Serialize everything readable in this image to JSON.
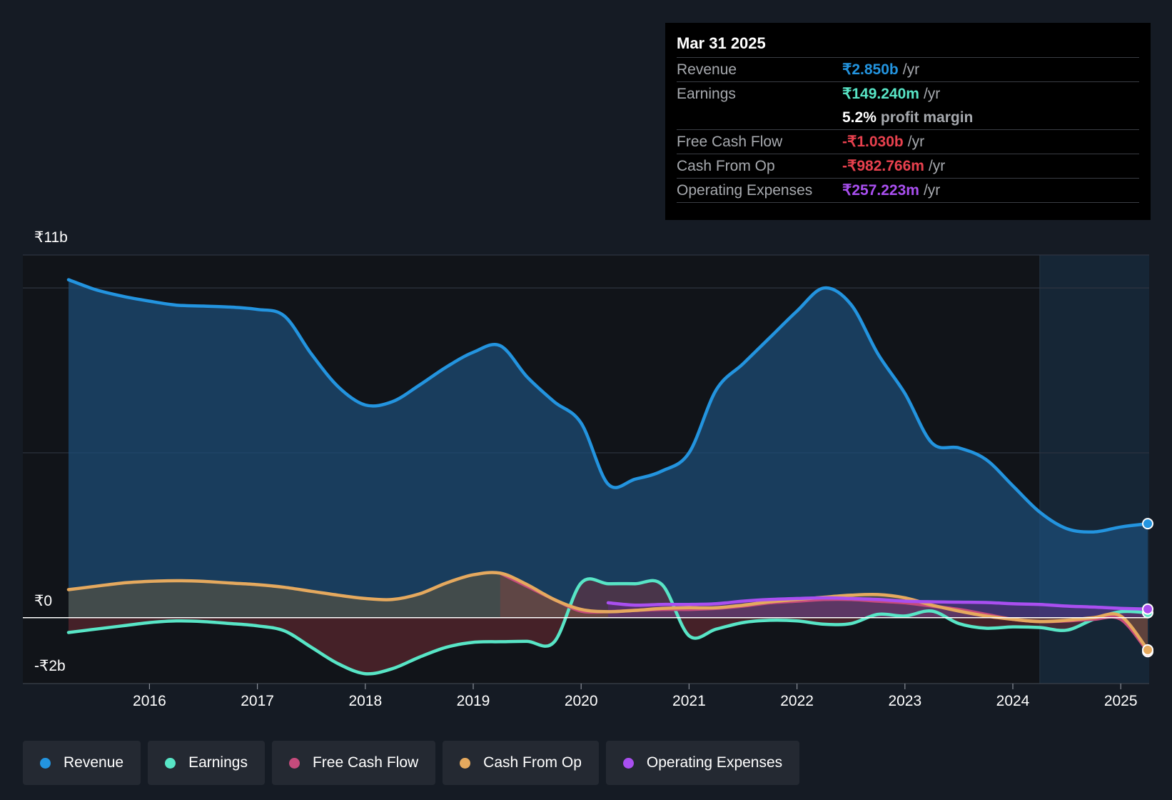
{
  "tooltip": {
    "date": "Mar 31 2025",
    "rows": [
      {
        "label": "Revenue",
        "value": "₹2.850b",
        "unit": "/yr",
        "color": "#2394df"
      },
      {
        "label": "Earnings",
        "value": "₹149.240m",
        "unit": "/yr",
        "color": "#58e5c6"
      },
      {
        "label": "",
        "value": "5.2%",
        "unit": "profit margin",
        "color": "#ffffff"
      },
      {
        "label": "Free Cash Flow",
        "value": "-₹1.030b",
        "unit": "/yr",
        "color": "#e8414e"
      },
      {
        "label": "Cash From Op",
        "value": "-₹982.766m",
        "unit": "/yr",
        "color": "#e8414e"
      },
      {
        "label": "Operating Expenses",
        "value": "₹257.223m",
        "unit": "/yr",
        "color": "#a94ff0"
      }
    ]
  },
  "legend": [
    {
      "label": "Revenue",
      "color": "#2394df"
    },
    {
      "label": "Earnings",
      "color": "#58e5c6"
    },
    {
      "label": "Free Cash Flow",
      "color": "#c54b7c"
    },
    {
      "label": "Cash From Op",
      "color": "#e5a95e"
    },
    {
      "label": "Operating Expenses",
      "color": "#a94ff0"
    }
  ],
  "chart_data": {
    "type": "area",
    "y_tick_labels": [
      "₹11b",
      "₹0",
      "-₹2b"
    ],
    "ylim": [
      -2,
      11
    ],
    "xlim": [
      2015.0,
      2025.25
    ],
    "x_tick_labels": [
      "2016",
      "2017",
      "2018",
      "2019",
      "2020",
      "2021",
      "2022",
      "2023",
      "2024",
      "2025"
    ],
    "x_ticks": [
      2016,
      2017,
      2018,
      2019,
      2020,
      2021,
      2022,
      2023,
      2024,
      2025
    ],
    "forecast_start": 2024.25,
    "grid": true,
    "series": [
      {
        "name": "Revenue",
        "color": "#2394df",
        "fill": true,
        "x": [
          2015.25,
          2015.5,
          2015.75,
          2016.0,
          2016.25,
          2016.5,
          2016.75,
          2017.0,
          2017.25,
          2017.5,
          2017.75,
          2018.0,
          2018.25,
          2018.5,
          2018.75,
          2019.0,
          2019.25,
          2019.5,
          2019.75,
          2020.0,
          2020.25,
          2020.5,
          2020.75,
          2021.0,
          2021.25,
          2021.5,
          2021.75,
          2022.0,
          2022.25,
          2022.5,
          2022.75,
          2023.0,
          2023.25,
          2023.5,
          2023.75,
          2024.0,
          2024.25,
          2024.5,
          2024.75,
          2025.0,
          2025.25
        ],
        "values": [
          10.25,
          9.95,
          9.75,
          9.6,
          9.48,
          9.45,
          9.42,
          9.35,
          9.15,
          8.0,
          7.0,
          6.45,
          6.55,
          7.05,
          7.6,
          8.05,
          8.25,
          7.3,
          6.55,
          5.9,
          4.05,
          4.2,
          4.45,
          5.0,
          6.9,
          7.7,
          8.5,
          9.3,
          10.0,
          9.5,
          8.0,
          6.8,
          5.3,
          5.15,
          4.8,
          4.0,
          3.2,
          2.7,
          2.6,
          2.75,
          2.85
        ]
      },
      {
        "name": "Earnings",
        "color": "#58e5c6",
        "fill": true,
        "x": [
          2015.25,
          2015.5,
          2015.75,
          2016.0,
          2016.25,
          2016.5,
          2016.75,
          2017.0,
          2017.25,
          2017.5,
          2017.75,
          2018.0,
          2018.25,
          2018.5,
          2018.75,
          2019.0,
          2019.25,
          2019.5,
          2019.75,
          2020.0,
          2020.25,
          2020.5,
          2020.75,
          2021.0,
          2021.25,
          2021.5,
          2021.75,
          2022.0,
          2022.25,
          2022.5,
          2022.75,
          2023.0,
          2023.25,
          2023.5,
          2023.75,
          2024.0,
          2024.25,
          2024.5,
          2024.75,
          2025.0,
          2025.25
        ],
        "values": [
          -0.45,
          -0.35,
          -0.25,
          -0.15,
          -0.1,
          -0.12,
          -0.18,
          -0.25,
          -0.4,
          -0.9,
          -1.4,
          -1.7,
          -1.55,
          -1.2,
          -0.9,
          -0.75,
          -0.73,
          -0.72,
          -0.74,
          1.05,
          1.03,
          1.03,
          1.0,
          -0.55,
          -0.35,
          -0.15,
          -0.08,
          -0.1,
          -0.2,
          -0.18,
          0.1,
          0.05,
          0.2,
          -0.18,
          -0.32,
          -0.28,
          -0.3,
          -0.38,
          -0.05,
          0.18,
          0.15
        ]
      },
      {
        "name": "Free Cash Flow",
        "color": "#c54b7c",
        "fill": true,
        "x": [
          2019.25,
          2019.5,
          2019.75,
          2020.0,
          2020.25,
          2020.5,
          2020.75,
          2021.0,
          2021.25,
          2021.5,
          2021.75,
          2022.0,
          2022.25,
          2022.5,
          2022.75,
          2023.0,
          2023.25,
          2023.5,
          2023.75,
          2024.0,
          2024.25,
          2024.5,
          2024.75,
          2025.0,
          2025.25
        ],
        "values": [
          1.35,
          0.95,
          0.55,
          0.2,
          0.18,
          0.22,
          0.25,
          0.25,
          0.28,
          0.35,
          0.45,
          0.5,
          0.55,
          0.55,
          0.5,
          0.45,
          0.35,
          0.25,
          0.1,
          -0.05,
          -0.12,
          -0.1,
          -0.05,
          -0.05,
          -1.03
        ]
      },
      {
        "name": "Cash From Op",
        "color": "#e5a95e",
        "fill": true,
        "x": [
          2015.25,
          2015.5,
          2015.75,
          2016.0,
          2016.25,
          2016.5,
          2016.75,
          2017.0,
          2017.25,
          2017.5,
          2017.75,
          2018.0,
          2018.25,
          2018.5,
          2018.75,
          2019.0,
          2019.25,
          2019.5,
          2019.75,
          2020.0,
          2020.25,
          2020.5,
          2020.75,
          2021.0,
          2021.25,
          2021.5,
          2021.75,
          2022.0,
          2022.25,
          2022.5,
          2022.75,
          2023.0,
          2023.25,
          2023.5,
          2023.75,
          2024.0,
          2024.25,
          2024.5,
          2024.75,
          2025.0,
          2025.25
        ],
        "values": [
          0.85,
          0.95,
          1.05,
          1.1,
          1.12,
          1.1,
          1.05,
          1.0,
          0.92,
          0.8,
          0.68,
          0.58,
          0.55,
          0.72,
          1.05,
          1.3,
          1.35,
          1.0,
          0.55,
          0.25,
          0.18,
          0.22,
          0.28,
          0.3,
          0.3,
          0.38,
          0.48,
          0.55,
          0.62,
          0.68,
          0.7,
          0.6,
          0.38,
          0.2,
          0.05,
          -0.05,
          -0.12,
          -0.08,
          0.0,
          0.05,
          -0.98
        ]
      },
      {
        "name": "Operating Expenses",
        "color": "#a94ff0",
        "fill": true,
        "x": [
          2020.25,
          2020.5,
          2020.75,
          2021.0,
          2021.25,
          2021.5,
          2021.75,
          2022.0,
          2022.25,
          2022.5,
          2022.75,
          2023.0,
          2023.25,
          2023.5,
          2023.75,
          2024.0,
          2024.25,
          2024.5,
          2024.75,
          2025.0,
          2025.25
        ],
        "values": [
          0.45,
          0.38,
          0.4,
          0.4,
          0.42,
          0.5,
          0.55,
          0.58,
          0.6,
          0.58,
          0.55,
          0.5,
          0.48,
          0.47,
          0.46,
          0.42,
          0.4,
          0.35,
          0.32,
          0.28,
          0.26
        ]
      }
    ]
  }
}
